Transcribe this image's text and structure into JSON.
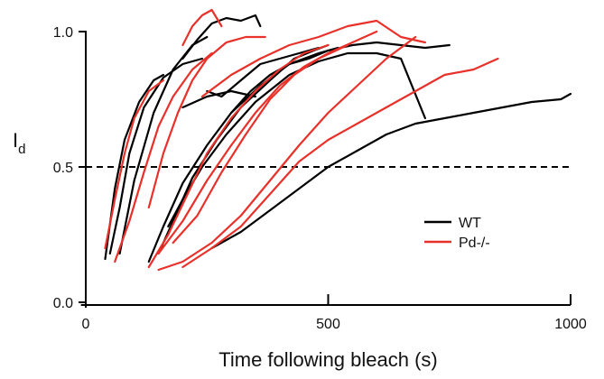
{
  "chart_data": {
    "type": "line",
    "title": "",
    "xlabel": "Time following bleach (s)",
    "ylabel": "I",
    "ylabel_subscript": "d",
    "xlim": [
      -10,
      1000
    ],
    "ylim": [
      -0.01,
      1.0
    ],
    "x_ticks": [
      0,
      500,
      1000
    ],
    "x_tick_labels": [
      "0",
      "500",
      "1000"
    ],
    "y_ticks": [
      0.0,
      0.5,
      1.0
    ],
    "y_tick_labels": [
      "0.0",
      "0.5",
      "1.0"
    ],
    "grid": false,
    "legend_position": "bottom-right",
    "reference_line": {
      "y": 0.5,
      "style": "dashed",
      "color": "#000000"
    },
    "legend": [
      {
        "label": "WT",
        "color": "#000000"
      },
      {
        "label": "Pd-/-",
        "color": "#e8312a"
      }
    ],
    "series": [
      {
        "group": "WT",
        "color": "#000000",
        "x": [
          40,
          60,
          80,
          110,
          140,
          160
        ],
        "y": [
          0.16,
          0.42,
          0.6,
          0.74,
          0.82,
          0.84
        ]
      },
      {
        "group": "WT",
        "color": "#000000",
        "x": [
          50,
          70,
          90,
          120,
          160,
          200,
          240
        ],
        "y": [
          0.18,
          0.35,
          0.55,
          0.72,
          0.83,
          0.88,
          0.9
        ]
      },
      {
        "group": "WT",
        "color": "#000000",
        "x": [
          70,
          100,
          140,
          180,
          220,
          250
        ],
        "y": [
          0.18,
          0.45,
          0.7,
          0.86,
          0.95,
          0.98
        ]
      },
      {
        "group": "WT",
        "color": "#000000",
        "x": [
          200,
          230,
          260,
          290,
          320,
          350,
          360
        ],
        "y": [
          0.9,
          0.97,
          1.03,
          1.05,
          1.04,
          1.06,
          1.02
        ]
      },
      {
        "group": "WT",
        "color": "#000000",
        "x": [
          150,
          180,
          220,
          270,
          320,
          380,
          430,
          470,
          500
        ],
        "y": [
          0.18,
          0.3,
          0.46,
          0.6,
          0.72,
          0.82,
          0.9,
          0.93,
          0.95
        ]
      },
      {
        "group": "WT",
        "color": "#000000",
        "x": [
          130,
          160,
          200,
          250,
          300,
          360,
          420,
          480,
          520
        ],
        "y": [
          0.15,
          0.28,
          0.44,
          0.58,
          0.7,
          0.8,
          0.88,
          0.92,
          0.94
        ]
      },
      {
        "group": "WT",
        "color": "#000000",
        "x": [
          170,
          200,
          240,
          290,
          350,
          420,
          480,
          540,
          600,
          650,
          700
        ],
        "y": [
          0.28,
          0.38,
          0.5,
          0.62,
          0.74,
          0.84,
          0.89,
          0.92,
          0.92,
          0.9,
          0.68
        ]
      },
      {
        "group": "WT",
        "color": "#000000",
        "x": [
          300,
          340,
          380,
          420,
          460,
          500,
          550,
          600,
          650,
          700,
          750
        ],
        "y": [
          0.7,
          0.78,
          0.84,
          0.88,
          0.9,
          0.93,
          0.95,
          0.96,
          0.95,
          0.94,
          0.95
        ]
      },
      {
        "group": "WT",
        "color": "#000000",
        "x": [
          250,
          280,
          320,
          360,
          400,
          440,
          480
        ],
        "y": [
          0.78,
          0.76,
          0.82,
          0.88,
          0.9,
          0.92,
          0.94
        ]
      },
      {
        "group": "WT",
        "color": "#000000",
        "x": [
          200,
          250,
          300,
          350
        ],
        "y": [
          0.72,
          0.76,
          0.78,
          0.76
        ]
      },
      {
        "group": "WT",
        "color": "#000000",
        "x": [
          260,
          320,
          380,
          440,
          500,
          560,
          620,
          680,
          740,
          800,
          860,
          920,
          980,
          1000
        ],
        "y": [
          0.2,
          0.26,
          0.34,
          0.42,
          0.5,
          0.56,
          0.62,
          0.66,
          0.68,
          0.7,
          0.72,
          0.74,
          0.75,
          0.77
        ]
      },
      {
        "group": "Pd-/-",
        "color": "#e8312a",
        "x": [
          40,
          60,
          80,
          100,
          130,
          160
        ],
        "y": [
          0.2,
          0.38,
          0.55,
          0.68,
          0.78,
          0.82
        ]
      },
      {
        "group": "Pd-/-",
        "color": "#e8312a",
        "x": [
          60,
          90,
          120,
          150,
          180,
          220,
          260
        ],
        "y": [
          0.15,
          0.3,
          0.48,
          0.65,
          0.76,
          0.86,
          0.92
        ]
      },
      {
        "group": "Pd-/-",
        "color": "#e8312a",
        "x": [
          130,
          160,
          190,
          220,
          250,
          290,
          330,
          370
        ],
        "y": [
          0.35,
          0.55,
          0.7,
          0.82,
          0.9,
          0.96,
          0.98,
          0.98
        ]
      },
      {
        "group": "Pd-/-",
        "color": "#e8312a",
        "x": [
          200,
          220,
          240,
          260,
          280
        ],
        "y": [
          0.95,
          1.02,
          1.06,
          1.08,
          1.02
        ]
      },
      {
        "group": "Pd-/-",
        "color": "#e8312a",
        "x": [
          130,
          170,
          210,
          250,
          300,
          350,
          400,
          450,
          500
        ],
        "y": [
          0.13,
          0.25,
          0.4,
          0.55,
          0.68,
          0.78,
          0.86,
          0.92,
          0.95
        ]
      },
      {
        "group": "Pd-/-",
        "color": "#e8312a",
        "x": [
          150,
          200,
          250,
          300,
          350,
          400,
          450,
          500,
          550,
          600
        ],
        "y": [
          0.18,
          0.3,
          0.45,
          0.58,
          0.7,
          0.8,
          0.87,
          0.92,
          0.96,
          1.0
        ]
      },
      {
        "group": "Pd-/-",
        "color": "#e8312a",
        "x": [
          180,
          230,
          280,
          330,
          380,
          430,
          480,
          540
        ],
        "y": [
          0.22,
          0.32,
          0.48,
          0.62,
          0.75,
          0.84,
          0.9,
          0.95
        ]
      },
      {
        "group": "Pd-/-",
        "color": "#e8312a",
        "x": [
          240,
          300,
          360,
          420,
          480,
          540,
          600,
          650,
          700
        ],
        "y": [
          0.76,
          0.84,
          0.9,
          0.95,
          0.98,
          1.02,
          1.04,
          0.98,
          0.96
        ]
      },
      {
        "group": "Pd-/-",
        "color": "#e8312a",
        "x": [
          150,
          200,
          260,
          320,
          380,
          440,
          500,
          560,
          620,
          680
        ],
        "y": [
          0.12,
          0.15,
          0.22,
          0.32,
          0.45,
          0.58,
          0.7,
          0.8,
          0.9,
          0.98
        ]
      },
      {
        "group": "Pd-/-",
        "color": "#e8312a",
        "x": [
          200,
          260,
          320,
          380,
          440,
          500,
          560,
          620,
          680,
          740,
          800,
          850
        ],
        "y": [
          0.13,
          0.2,
          0.28,
          0.4,
          0.52,
          0.6,
          0.66,
          0.72,
          0.78,
          0.84,
          0.86,
          0.9
        ]
      }
    ]
  }
}
